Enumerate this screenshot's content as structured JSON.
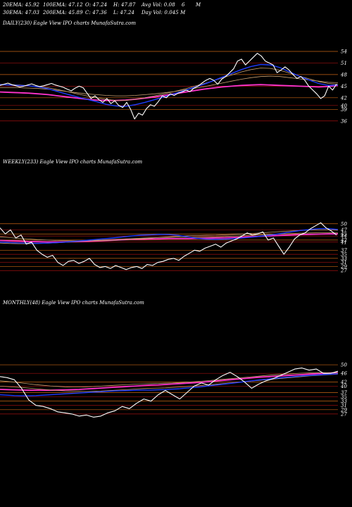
{
  "header": {
    "ema20": "20EMA: 45.92",
    "ema100": "100EMA: 47.12",
    "open": "O: 47.24",
    "high": "H: 47.87",
    "avg_vol": "Avg Vol: 0.08",
    "six": "6",
    "m": "M",
    "ema30": "30EMA: 47.03",
    "ema200": "200EMA: 45.89",
    "close": "C: 47.36",
    "low": "L: 47.24",
    "day_vol": "Day Vol: 0.045 M"
  },
  "colors": {
    "background": "#000000",
    "price": "#ffffff",
    "ema_fast": "#1f3cff",
    "ema_pink": "#ff33cc",
    "ema_mid": "#c8a070",
    "grid_red": "#a01010",
    "grid_orange": "#c86414"
  },
  "chart_data": [
    {
      "type": "line",
      "title": "DAILY(230) Eagle  View  IPO charts MunafaSutra.com",
      "ticks": [
        "54",
        "51",
        "48",
        "45",
        "42",
        "40",
        "39",
        "36"
      ],
      "tick_values": [
        54,
        51,
        48,
        45,
        42,
        40,
        39,
        36
      ],
      "ylim": [
        34.5,
        56
      ],
      "series": [
        {
          "role": "price",
          "values": [
            45.2,
            45.5,
            45.8,
            45.4,
            45.1,
            44.8,
            45.0,
            45.3,
            45.6,
            45.2,
            44.9,
            45.1,
            45.4,
            45.7,
            45.3,
            45.0,
            44.7,
            44.2,
            43.8,
            44.5,
            45.0,
            44.6,
            43.2,
            41.8,
            42.5,
            41.5,
            40.8,
            41.8,
            40.5,
            41.2,
            40.0,
            39.5,
            40.8,
            39.0,
            36.5,
            38.0,
            37.5,
            39.2,
            40.2,
            39.8,
            41.0,
            42.5,
            42.0,
            43.0,
            42.6,
            43.2,
            43.5,
            44.0,
            43.6,
            44.5,
            45.0,
            45.8,
            46.5,
            47.0,
            46.5,
            45.5,
            46.8,
            47.5,
            48.5,
            49.5,
            51.5,
            52.0,
            50.5,
            51.5,
            52.5,
            53.5,
            52.8,
            51.5,
            51.0,
            50.5,
            48.5,
            49.2,
            50.0,
            49.2,
            48.0,
            47.0,
            47.5,
            46.5,
            45.0,
            44.0,
            43.0,
            41.8,
            42.5,
            45.0,
            44.0,
            45.5
          ]
        },
        {
          "role": "ema20",
          "values": [
            45.4,
            45.3,
            45.2,
            45.1,
            44.8,
            44.3,
            43.6,
            42.9,
            42.2,
            41.6,
            41.0,
            40.3,
            39.9,
            39.8,
            40.2,
            40.8,
            41.5,
            42.2,
            43.0,
            43.8,
            44.6,
            45.4,
            46.3,
            47.3,
            48.3,
            49.3,
            50.1,
            50.6,
            50.5,
            49.8,
            48.7,
            47.6,
            46.6,
            45.7,
            45.2,
            45.3
          ]
        },
        {
          "role": "ema30",
          "values": [
            45.5,
            45.4,
            45.3,
            45.1,
            44.9,
            44.6,
            44.1,
            43.6,
            43.0,
            42.5,
            42.0,
            41.6,
            41.3,
            41.3,
            41.6,
            42.0,
            42.5,
            43.0,
            43.6,
            44.2,
            44.9,
            45.6,
            46.3,
            47.1,
            47.9,
            48.7,
            49.3,
            49.7,
            49.6,
            49.1,
            48.4,
            47.6,
            46.9,
            46.2,
            45.7,
            45.5
          ]
        },
        {
          "role": "ema100",
          "values": [
            44.6,
            44.6,
            44.6,
            44.5,
            44.4,
            44.2,
            43.9,
            43.6,
            43.3,
            43.0,
            42.8,
            42.6,
            42.5,
            42.5,
            42.6,
            42.8,
            43.0,
            43.3,
            43.6,
            44.0,
            44.4,
            44.8,
            45.3,
            45.8,
            46.3,
            46.8,
            47.2,
            47.5,
            47.6,
            47.5,
            47.2,
            46.9,
            46.6,
            46.3,
            46.0,
            45.9
          ]
        },
        {
          "role": "ema200",
          "values": [
            43.5,
            43.4,
            43.3,
            43.2,
            43.0,
            42.8,
            42.5,
            42.2,
            41.9,
            41.6,
            41.4,
            41.3,
            41.3,
            41.4,
            41.6,
            41.9,
            42.2,
            42.6,
            43.0,
            43.4,
            43.8,
            44.2,
            44.5,
            44.8,
            45.0,
            45.2,
            45.3,
            45.4,
            45.3,
            45.2,
            45.1,
            45.0,
            44.9,
            44.8,
            44.9,
            45.2
          ]
        }
      ]
    },
    {
      "type": "line",
      "title": "WEEKLY(233) Eagle  View  IPO charts MunafaSutra.com",
      "ticks": [
        "50",
        "47",
        "45",
        "44",
        "42",
        "41",
        "37",
        "35",
        "33",
        "31",
        "29",
        "27"
      ],
      "tick_values": [
        50,
        47,
        45,
        44,
        42,
        41,
        37,
        35,
        33,
        31,
        29,
        27
      ],
      "ylim": [
        25,
        52
      ],
      "series": [
        {
          "role": "price",
          "values": [
            48.0,
            45.0,
            47.0,
            43.0,
            44.5,
            40.0,
            41.0,
            37.0,
            35.0,
            33.5,
            34.5,
            31.0,
            29.5,
            31.5,
            32.0,
            30.5,
            31.5,
            33.0,
            30.0,
            28.5,
            29.0,
            28.0,
            29.5,
            28.5,
            27.5,
            28.5,
            29.0,
            28.0,
            30.0,
            29.5,
            31.0,
            31.5,
            32.5,
            33.0,
            32.0,
            34.0,
            35.5,
            37.0,
            36.5,
            38.0,
            39.0,
            40.0,
            38.5,
            40.5,
            41.5,
            42.5,
            44.0,
            45.5,
            44.5,
            45.0,
            46.0,
            42.0,
            43.0,
            39.0,
            35.0,
            38.5,
            42.5,
            44.5,
            45.5,
            47.5,
            49.0,
            50.5,
            48.0,
            46.5,
            44.5
          ]
        },
        {
          "role": "ema20",
          "values": [
            41.0,
            40.8,
            40.6,
            40.5,
            40.4,
            40.5,
            40.7,
            41.0,
            41.4,
            41.8,
            42.2,
            42.6,
            43.0,
            43.5,
            44.0,
            44.4,
            44.6,
            44.8,
            44.7,
            44.3,
            43.6,
            42.8,
            42.4,
            42.3,
            42.4,
            42.7,
            43.1,
            43.5,
            44.0,
            44.6,
            45.3,
            46.0,
            46.7,
            47.2,
            47.6,
            47.6,
            47.2
          ]
        },
        {
          "role": "ema50",
          "values": [
            43.6,
            43.2,
            42.8,
            42.5,
            42.2,
            42.0,
            41.8,
            41.7,
            41.6,
            41.6,
            41.6,
            41.7,
            41.8,
            42.0,
            42.3,
            42.6,
            42.9,
            43.3,
            43.6,
            43.9,
            44.1,
            44.2,
            44.3,
            44.4,
            44.6,
            44.8,
            45.0,
            45.3,
            45.6,
            45.9,
            46.2,
            46.5,
            46.7,
            46.9,
            47.0,
            47.0,
            46.8
          ]
        },
        {
          "role": "ema100",
          "values": [
            40.5,
            40.3,
            40.2,
            40.2,
            40.3,
            40.4,
            40.6,
            40.9,
            41.2,
            41.5,
            41.8,
            42.1,
            42.3,
            42.5,
            42.7,
            42.9,
            43.1,
            43.2,
            43.3,
            43.4,
            43.4,
            43.4,
            43.5,
            43.6,
            43.8,
            44.0,
            44.2,
            44.4,
            44.6,
            44.8,
            45.0,
            45.2,
            45.4,
            45.5,
            45.6,
            45.6,
            45.5
          ]
        },
        {
          "role": "ema200",
          "values": [
            41.8,
            41.6,
            41.5,
            41.3,
            41.2,
            41.1,
            41.1,
            41.1,
            41.2,
            41.3,
            41.5,
            41.7,
            41.9,
            42.1,
            42.3,
            42.4,
            42.5,
            42.6,
            42.7,
            42.7,
            42.7,
            42.8,
            42.9,
            43.0,
            43.1,
            43.3,
            43.5,
            43.7,
            43.9,
            44.1,
            44.3,
            44.5,
            44.7,
            44.8,
            44.9,
            45.0,
            45.0
          ]
        }
      ]
    },
    {
      "type": "line",
      "title": "MONTHLY(48) Eagle  View  IPO charts MunafaSutra.com",
      "ticks": [
        "50",
        "46",
        "42",
        "40",
        "37",
        "35",
        "33",
        "31",
        "29",
        "27"
      ],
      "tick_values": [
        50,
        46,
        42,
        40,
        37,
        35,
        33,
        31,
        29,
        27
      ],
      "ylim": [
        23,
        52
      ],
      "series": [
        {
          "role": "price",
          "values": [
            44.5,
            44.0,
            43.0,
            39.0,
            33.5,
            31.0,
            30.5,
            29.5,
            28.0,
            27.5,
            27.0,
            26.0,
            26.5,
            25.5,
            26.0,
            27.5,
            28.5,
            30.5,
            29.5,
            32.0,
            34.0,
            33.0,
            36.0,
            38.0,
            36.0,
            34.0,
            37.0,
            40.0,
            41.5,
            40.5,
            43.0,
            45.0,
            46.5,
            44.5,
            42.0,
            39.0,
            41.0,
            42.5,
            43.5,
            45.0,
            46.5,
            48.0,
            48.5,
            47.5,
            48.0,
            46.0,
            46.0,
            47.0
          ]
        },
        {
          "role": "ema20",
          "values": [
            36.0,
            35.8,
            35.6,
            35.5,
            35.5,
            35.6,
            35.8,
            36.0,
            36.2,
            36.4,
            36.6,
            36.8,
            37.0,
            37.2,
            37.4,
            37.6,
            37.8,
            37.9,
            38.0,
            38.1,
            38.2,
            38.2,
            38.3,
            38.4,
            38.6,
            38.8,
            39.1,
            39.4,
            39.7,
            40.1,
            40.5,
            40.9,
            41.3,
            41.7,
            42.1,
            42.5,
            42.9,
            43.2,
            43.6,
            43.9,
            44.2,
            44.5,
            44.8,
            45.0,
            45.2,
            45.4,
            45.6,
            45.8
          ]
        },
        {
          "role": "ema30",
          "values": [
            40.0,
            39.8,
            39.6,
            39.4,
            39.1,
            38.8,
            38.5,
            38.2,
            38.0,
            37.8,
            37.7,
            37.6,
            37.5,
            37.6,
            37.7,
            37.9,
            38.1,
            38.3,
            38.5,
            38.7,
            38.9,
            39.0,
            39.1,
            39.2,
            39.4,
            39.6,
            39.8,
            40.0,
            40.3,
            40.6,
            40.9,
            41.2,
            41.5,
            41.8,
            42.1,
            42.4,
            42.7,
            43.0,
            43.3,
            43.6,
            43.9,
            44.2,
            44.5,
            44.8,
            45.0,
            45.2,
            45.4,
            45.6
          ]
        },
        {
          "role": "ema100",
          "values": [
            42.5,
            42.2,
            41.9,
            41.5,
            41.1,
            40.7,
            40.4,
            40.1,
            39.9,
            39.7,
            39.6,
            39.6,
            39.7,
            39.8,
            40.0,
            40.2,
            40.4,
            40.6,
            40.8,
            41.0,
            41.1,
            41.2,
            41.3,
            41.4,
            41.5,
            41.7,
            41.9,
            42.1,
            42.3,
            42.6,
            42.9,
            43.2,
            43.5,
            43.8,
            44.1,
            44.4,
            44.7,
            45.0,
            45.3,
            45.5,
            45.7,
            45.9,
            46.1,
            46.2,
            46.3,
            46.3,
            46.2,
            46.2
          ]
        },
        {
          "role": "ema200",
          "values": [
            38.5,
            38.4,
            38.3,
            38.2,
            38.1,
            38.1,
            38.1,
            38.1,
            38.2,
            38.3,
            38.4,
            38.5,
            38.7,
            38.9,
            39.1,
            39.3,
            39.5,
            39.7,
            39.9,
            40.1,
            40.3,
            40.5,
            40.6,
            40.8,
            41.0,
            41.2,
            41.4,
            41.6,
            41.8,
            42.1,
            42.4,
            42.7,
            43.0,
            43.3,
            43.6,
            43.9,
            44.2,
            44.4,
            44.6,
            44.8,
            45.0,
            45.2,
            45.4,
            45.6,
            45.8,
            46.0,
            46.2,
            46.3
          ]
        }
      ]
    }
  ]
}
